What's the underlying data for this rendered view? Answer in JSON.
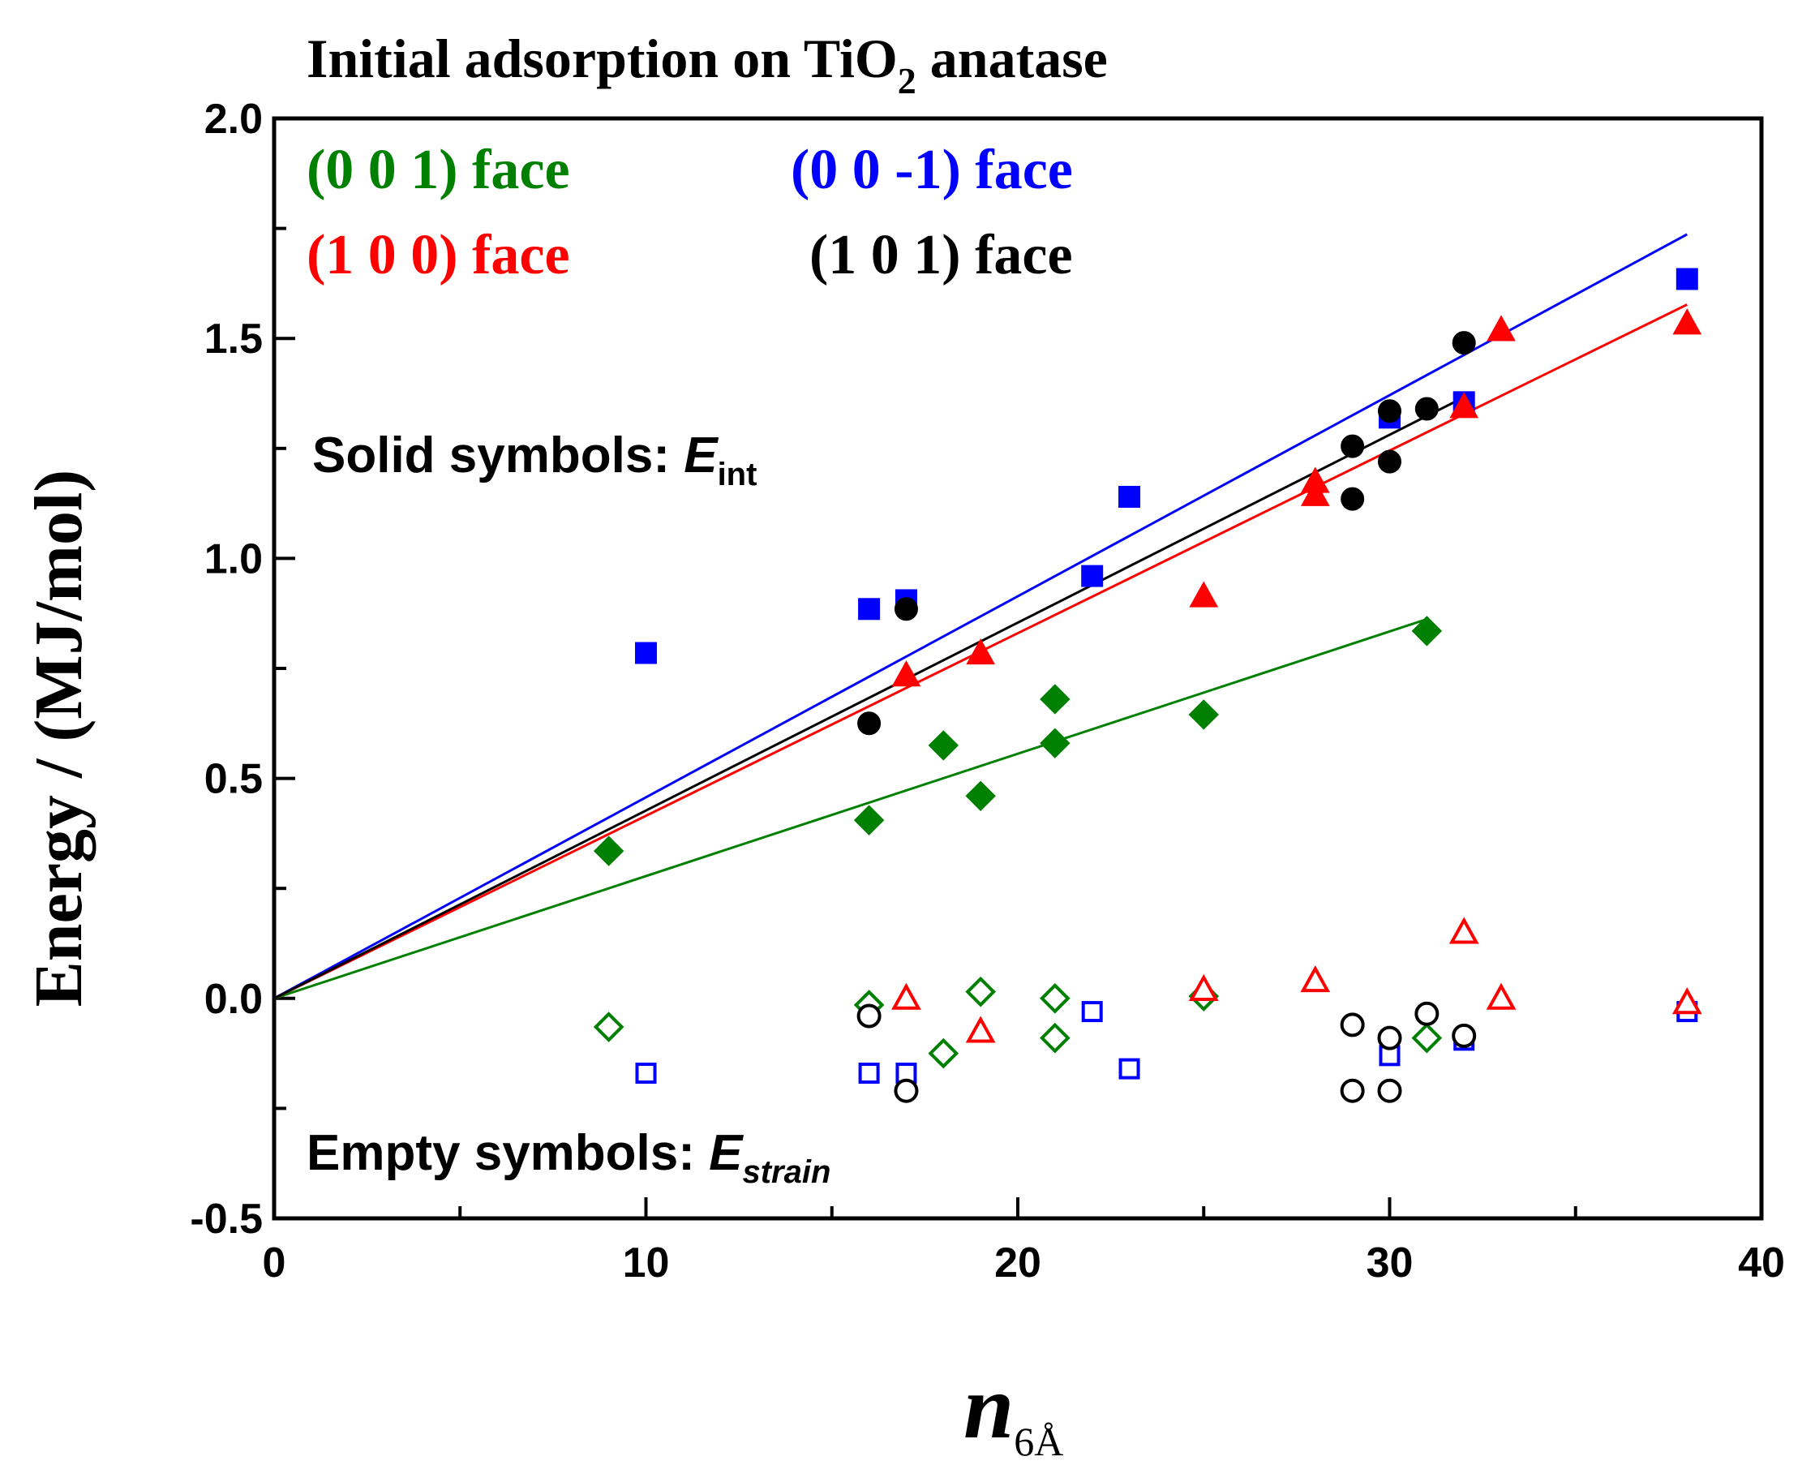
{
  "chart_data": {
    "type": "scatter",
    "title_main": "Initial adsorption on TiO",
    "title_sub": "2",
    "title_tail": " anatase",
    "xlabel_main": "n",
    "xlabel_sub": "6Å",
    "ylabel": "Energy / (MJ/mol)",
    "xlim": [
      0,
      40
    ],
    "ylim": [
      -0.5,
      2.0
    ],
    "xticks": [
      "0",
      "10",
      "20",
      "30",
      "40"
    ],
    "yticks": [
      "-0.5",
      "0.0",
      "0.5",
      "1.0",
      "1.5",
      "2.0"
    ],
    "legend": {
      "face001": "(0 0 1) face",
      "face00m1": "(0 0 -1) face",
      "face100": "(1 0 0) face",
      "face101": "(1 0 1) face"
    },
    "annotations": {
      "solid_prefix": "Solid  symbols: ",
      "solid_var": "E",
      "solid_sub": "int",
      "empty_prefix": "Empty symbols: ",
      "empty_var": "E",
      "empty_sub": "strain"
    },
    "colors": {
      "face001": "#008000",
      "face00m1": "#0000ff",
      "face100": "#ff0000",
      "face101": "#000000"
    },
    "series": [
      {
        "name": "(0 0 1) face",
        "key": "face001",
        "marker": "diamond",
        "fit_slope": 0.0278,
        "fit_xmax": 31,
        "E_int": [
          [
            9,
            0.335
          ],
          [
            16,
            0.405
          ],
          [
            18,
            0.575
          ],
          [
            19,
            0.46
          ],
          [
            21,
            0.68
          ],
          [
            21,
            0.58
          ],
          [
            25,
            0.645
          ],
          [
            31,
            0.835
          ]
        ],
        "E_strain": [
          [
            9,
            -0.065
          ],
          [
            16,
            -0.015
          ],
          [
            18,
            -0.125
          ],
          [
            19,
            0.015
          ],
          [
            21,
            0.0
          ],
          [
            21,
            -0.09
          ],
          [
            25,
            0.005
          ],
          [
            31,
            -0.09
          ]
        ]
      },
      {
        "name": "(0 0 -1) face",
        "key": "face00m1",
        "marker": "square",
        "fit_slope": 0.0457,
        "fit_xmax": 38,
        "E_int": [
          [
            10,
            0.785
          ],
          [
            16,
            0.885
          ],
          [
            17,
            0.905
          ],
          [
            22,
            0.96
          ],
          [
            23,
            1.14
          ],
          [
            30,
            1.32
          ],
          [
            32,
            1.355
          ],
          [
            38,
            1.635
          ]
        ],
        "E_strain": [
          [
            10,
            -0.17
          ],
          [
            16,
            -0.17
          ],
          [
            17,
            -0.17
          ],
          [
            22,
            -0.03
          ],
          [
            23,
            -0.16
          ],
          [
            30,
            -0.13
          ],
          [
            32,
            -0.095
          ],
          [
            38,
            -0.03
          ]
        ]
      },
      {
        "name": "(1 0 0) face",
        "key": "face100",
        "marker": "triangle",
        "fit_slope": 0.0415,
        "fit_xmax": 38,
        "E_int": [
          [
            17,
            0.735
          ],
          [
            19,
            0.785
          ],
          [
            25,
            0.915
          ],
          [
            28,
            1.175
          ],
          [
            28,
            1.145
          ],
          [
            32,
            1.345
          ],
          [
            33,
            1.52
          ],
          [
            38,
            1.535
          ]
        ],
        "E_strain": [
          [
            17,
            0.0
          ],
          [
            19,
            -0.075
          ],
          [
            25,
            0.02
          ],
          [
            28,
            0.04
          ],
          [
            32,
            0.15
          ],
          [
            33,
            0.0
          ],
          [
            38,
            -0.01
          ]
        ]
      },
      {
        "name": "(1 0 1) face",
        "key": "face101",
        "marker": "circle",
        "fit_slope": 0.0427,
        "fit_xmax": 32,
        "E_int": [
          [
            16,
            0.625
          ],
          [
            17,
            0.885
          ],
          [
            29,
            1.255
          ],
          [
            29,
            1.135
          ],
          [
            30,
            1.335
          ],
          [
            30,
            1.22
          ],
          [
            31,
            1.34
          ],
          [
            32,
            1.49
          ]
        ],
        "E_strain": [
          [
            16,
            -0.04
          ],
          [
            17,
            -0.21
          ],
          [
            29,
            -0.06
          ],
          [
            29,
            -0.21
          ],
          [
            30,
            -0.09
          ],
          [
            30,
            -0.21
          ],
          [
            31,
            -0.035
          ],
          [
            32,
            -0.085
          ]
        ]
      }
    ]
  }
}
